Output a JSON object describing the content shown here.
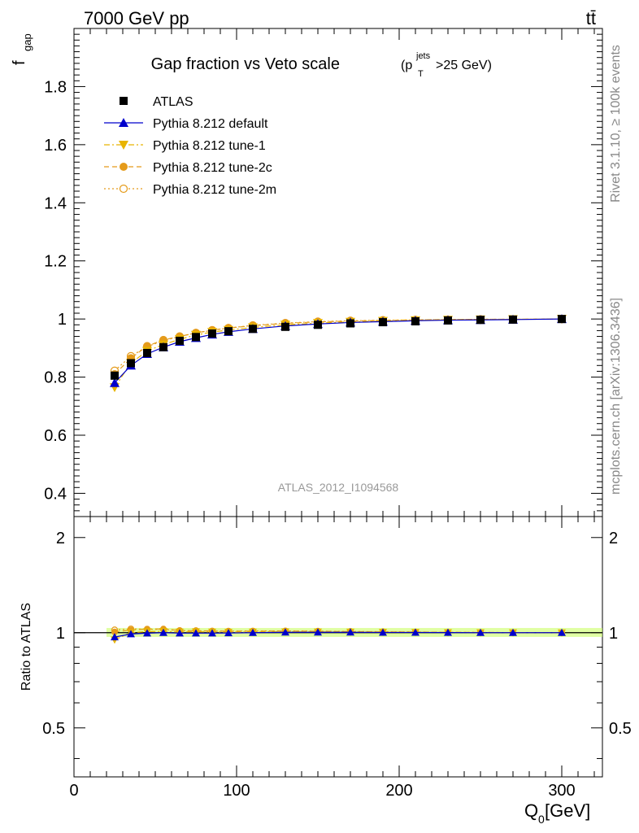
{
  "header": {
    "left": "7000 GeV pp",
    "right": "tt̄"
  },
  "side_labels": {
    "rivet": "Rivet 3.1.10, ≥ 100k events",
    "mcplots": "mcplots.cern.ch [arXiv:1306.3436]"
  },
  "chart_data": {
    "type": "line",
    "title": "Gap fraction vs Veto scale",
    "title_cut": {
      "p": "(p",
      "sub": "T",
      "sup": "jets",
      "rest": ">25 GeV)"
    },
    "analysis_id": "ATLAS_2012_I1094568",
    "xlabel": {
      "main": "Q",
      "sub": "0",
      "rest": " [GeV]"
    },
    "ylabel": {
      "main": "f",
      "sub": "gap"
    },
    "ratio_ylabel": "Ratio to ATLAS",
    "xlim": [
      0,
      325
    ],
    "ylim": [
      0.32,
      2.0
    ],
    "ratio_ylim": [
      0.35,
      2.33
    ],
    "x_ticks": [
      0,
      100,
      200,
      300
    ],
    "y_ticks": [
      0.4,
      0.6,
      0.8,
      1,
      1.2,
      1.4,
      1.6,
      1.8
    ],
    "ratio_ticks": [
      0.5,
      1,
      2
    ],
    "legend_position": "top-left",
    "x": [
      25,
      35,
      45,
      55,
      65,
      75,
      85,
      95,
      110,
      130,
      150,
      170,
      190,
      210,
      230,
      250,
      270,
      300
    ],
    "series": [
      {
        "name": "ATLAS",
        "color": "#000000",
        "marker": "square",
        "line": "none",
        "values": [
          0.805,
          0.848,
          0.883,
          0.903,
          0.925,
          0.938,
          0.95,
          0.958,
          0.966,
          0.973,
          0.98,
          0.985,
          0.989,
          0.992,
          0.995,
          0.997,
          0.998,
          1.0
        ]
      },
      {
        "name": "Pythia 8.212 default",
        "color": "#0000cc",
        "marker": "triangle-up",
        "line": "solid",
        "values": [
          0.78,
          0.84,
          0.88,
          0.903,
          0.922,
          0.935,
          0.947,
          0.956,
          0.966,
          0.976,
          0.983,
          0.988,
          0.991,
          0.994,
          0.996,
          0.997,
          0.998,
          1.0
        ]
      },
      {
        "name": "Pythia 8.212 tune-1",
        "color": "#e8b400",
        "marker": "triangle-down",
        "line": "dashdot",
        "values": [
          0.765,
          0.848,
          0.89,
          0.912,
          0.93,
          0.945,
          0.955,
          0.962,
          0.971,
          0.98,
          0.986,
          0.99,
          0.993,
          0.995,
          0.997,
          0.998,
          0.999,
          1.0
        ]
      },
      {
        "name": "Pythia 8.212 tune-2c",
        "color": "#e59b1a",
        "marker": "circle-filled",
        "line": "dashed",
        "values": [
          0.81,
          0.865,
          0.907,
          0.928,
          0.94,
          0.952,
          0.962,
          0.969,
          0.977,
          0.985,
          0.99,
          0.993,
          0.995,
          0.997,
          0.998,
          0.999,
          0.999,
          1.0
        ]
      },
      {
        "name": "Pythia 8.212 tune-2m",
        "color": "#e59b1a",
        "marker": "circle-open",
        "line": "dotted",
        "values": [
          0.822,
          0.872,
          0.905,
          0.925,
          0.94,
          0.952,
          0.961,
          0.969,
          0.978,
          0.986,
          0.991,
          0.994,
          0.996,
          0.997,
          0.998,
          0.999,
          0.999,
          1.0
        ]
      }
    ],
    "ratio_band_color": "#ccff66"
  }
}
